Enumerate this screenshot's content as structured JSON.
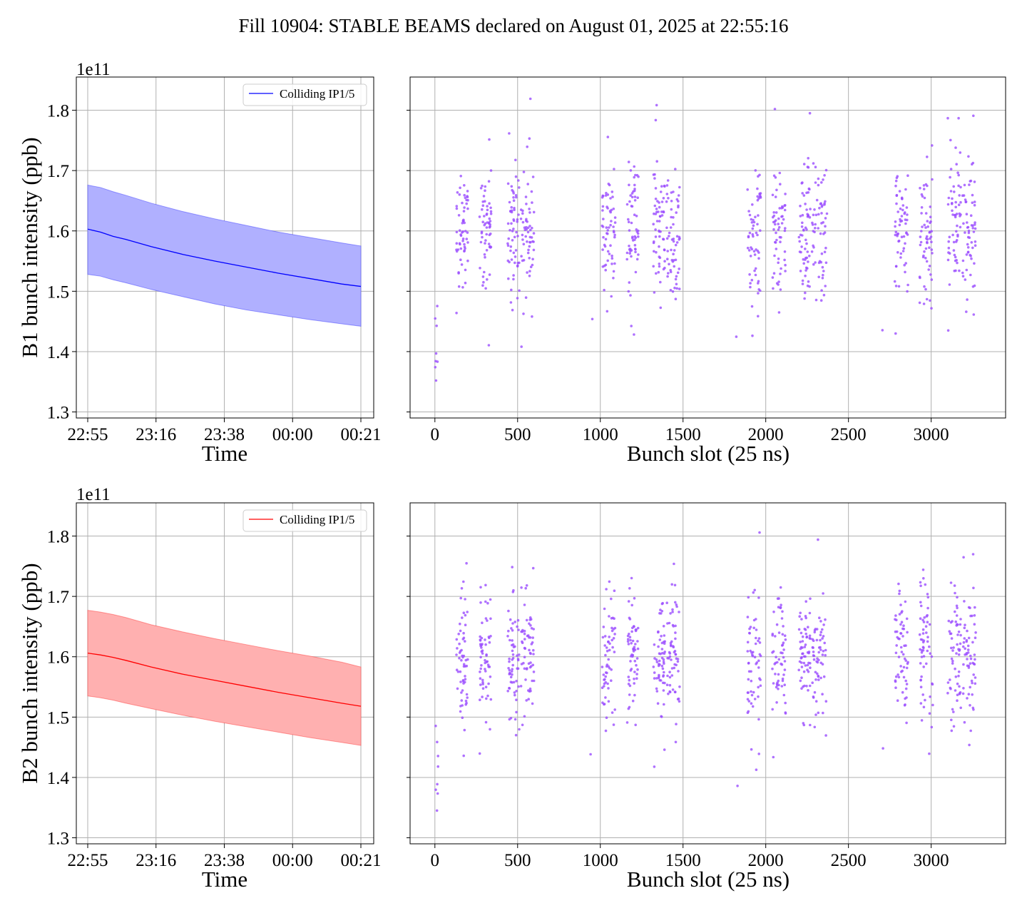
{
  "title": "Fill 10904: STABLE BEAMS declared on August 01, 2025 at 22:55:16",
  "chart_data": [
    {
      "panel": "B1 intensity vs time",
      "type": "area",
      "xlabel": "Time",
      "ylabel": "B1 bunch intensity (ppb)",
      "y_offset_label": "1e11",
      "xtick_labels": [
        "22:55",
        "23:16",
        "23:38",
        "00:00",
        "00:21"
      ],
      "ytick_labels": [
        "1.3",
        "1.4",
        "1.5",
        "1.6",
        "1.7",
        "1.8"
      ],
      "ylim": [
        1.29,
        1.855
      ],
      "grid": true,
      "legend_position": "upper right",
      "legend": [
        "Colliding IP1/5"
      ],
      "color": "#0000ff",
      "fill_color": "#b0b0ff",
      "x_minutes": [
        0,
        4,
        8,
        12,
        20,
        30,
        40,
        50,
        60,
        70,
        80,
        86
      ],
      "mean": [
        1.603,
        1.598,
        1.591,
        1.586,
        1.574,
        1.561,
        1.55,
        1.54,
        1.53,
        1.521,
        1.512,
        1.508
      ],
      "upper": [
        1.676,
        1.672,
        1.665,
        1.659,
        1.646,
        1.632,
        1.62,
        1.609,
        1.598,
        1.589,
        1.58,
        1.575
      ],
      "lower": [
        1.528,
        1.525,
        1.519,
        1.514,
        1.503,
        1.491,
        1.479,
        1.469,
        1.461,
        1.453,
        1.446,
        1.442
      ]
    },
    {
      "panel": "B1 intensity vs bunch slot",
      "type": "scatter",
      "xlabel": "Bunch slot (25 ns)",
      "xtick_labels": [
        "0",
        "500",
        "1000",
        "1500",
        "2000",
        "2500",
        "3000"
      ],
      "xlim": [
        -150,
        3450
      ],
      "ylim": [
        1.29,
        1.855
      ],
      "grid": true,
      "color": "#9b4dff",
      "seed": 11
    },
    {
      "panel": "B2 intensity vs time",
      "type": "area",
      "xlabel": "Time",
      "ylabel": "B2 bunch intensity (ppb)",
      "y_offset_label": "1e11",
      "xtick_labels": [
        "22:55",
        "23:16",
        "23:38",
        "00:00",
        "00:21"
      ],
      "ytick_labels": [
        "1.3",
        "1.4",
        "1.5",
        "1.6",
        "1.7",
        "1.8"
      ],
      "ylim": [
        1.29,
        1.855
      ],
      "grid": true,
      "legend_position": "upper right",
      "legend": [
        "Colliding IP1/5"
      ],
      "color": "#ff0000",
      "fill_color": "#ffb0b0",
      "x_minutes": [
        0,
        4,
        8,
        12,
        20,
        30,
        40,
        50,
        60,
        70,
        80,
        86
      ],
      "mean": [
        1.606,
        1.603,
        1.599,
        1.594,
        1.583,
        1.571,
        1.561,
        1.551,
        1.541,
        1.532,
        1.523,
        1.518
      ],
      "upper": [
        1.677,
        1.674,
        1.67,
        1.665,
        1.653,
        1.641,
        1.63,
        1.62,
        1.61,
        1.601,
        1.591,
        1.583
      ],
      "lower": [
        1.535,
        1.532,
        1.528,
        1.523,
        1.514,
        1.503,
        1.493,
        1.484,
        1.475,
        1.466,
        1.458,
        1.453
      ]
    },
    {
      "panel": "B2 intensity vs bunch slot",
      "type": "scatter",
      "xlabel": "Bunch slot (25 ns)",
      "xtick_labels": [
        "0",
        "500",
        "1000",
        "1500",
        "2000",
        "2500",
        "3000"
      ],
      "xlim": [
        -150,
        3450
      ],
      "ylim": [
        1.29,
        1.855
      ],
      "grid": true,
      "color": "#9b4dff",
      "seed": 29
    }
  ],
  "bunch_trains": [
    [
      0,
      20,
      8
    ],
    [
      130,
      200,
      60
    ],
    [
      270,
      340,
      60
    ],
    [
      440,
      510,
      60
    ],
    [
      520,
      600,
      60
    ],
    [
      940,
      955,
      1
    ],
    [
      1010,
      1090,
      60
    ],
    [
      1160,
      1230,
      60
    ],
    [
      1320,
      1390,
      60
    ],
    [
      1400,
      1480,
      60
    ],
    [
      1815,
      1830,
      1
    ],
    [
      1890,
      1970,
      60
    ],
    [
      2040,
      2120,
      60
    ],
    [
      2200,
      2270,
      60
    ],
    [
      2280,
      2370,
      60
    ],
    [
      2700,
      2715,
      1
    ],
    [
      2780,
      2860,
      60
    ],
    [
      2930,
      3010,
      60
    ],
    [
      3100,
      3180,
      60
    ],
    [
      3190,
      3270,
      60
    ]
  ]
}
